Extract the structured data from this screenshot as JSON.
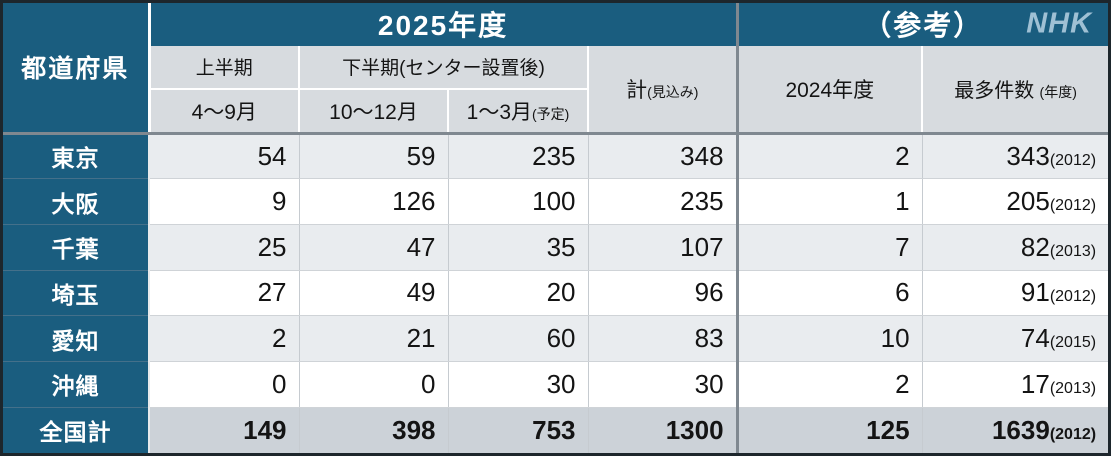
{
  "colors": {
    "accent_teal": "#1a5d7f",
    "subheader_gray": "#d7dbdf",
    "row_alt_gray": "#e9ecef",
    "total_row_gray": "#ccd2d8",
    "logo_blue": "#9fc0d4",
    "separator_gray": "#7f8890",
    "outer_border": "#1d262c"
  },
  "header": {
    "prefecture_col": "都道府県",
    "fy2025_title": "2025年度",
    "reference_title": "（参考）",
    "nhk_logo": "NHK",
    "first_half": "上半期",
    "second_half": "下半期(センター設置後)",
    "col_apr_sep": "4～9月",
    "col_oct_dec": "10～12月",
    "col_jan_mar": "1～3月",
    "col_jan_mar_note": "(予定)",
    "col_total": "計",
    "col_total_note": "(見込み)",
    "col_fy2024": "2024年度",
    "col_max": "最多件数",
    "col_max_note": "(年度)"
  },
  "chart_data": {
    "type": "table",
    "title": "2025年度 都道府県別件数（参考：2024年度・最多件数）",
    "columns": [
      "都道府県",
      "4～9月",
      "10～12月",
      "1～3月(予定)",
      "計(見込み)",
      "2024年度",
      "最多件数(年度)"
    ],
    "rows": [
      {
        "prefecture": "東京",
        "apr_sep": "54",
        "oct_dec": "59",
        "jan_mar": "235",
        "total": "348",
        "fy2024": "2",
        "max_value": "343",
        "max_year": "(2012)",
        "is_total": false
      },
      {
        "prefecture": "大阪",
        "apr_sep": "9",
        "oct_dec": "126",
        "jan_mar": "100",
        "total": "235",
        "fy2024": "1",
        "max_value": "205",
        "max_year": "(2012)",
        "is_total": false
      },
      {
        "prefecture": "千葉",
        "apr_sep": "25",
        "oct_dec": "47",
        "jan_mar": "35",
        "total": "107",
        "fy2024": "7",
        "max_value": "82",
        "max_year": "(2013)",
        "is_total": false
      },
      {
        "prefecture": "埼玉",
        "apr_sep": "27",
        "oct_dec": "49",
        "jan_mar": "20",
        "total": "96",
        "fy2024": "6",
        "max_value": "91",
        "max_year": "(2012)",
        "is_total": false
      },
      {
        "prefecture": "愛知",
        "apr_sep": "2",
        "oct_dec": "21",
        "jan_mar": "60",
        "total": "83",
        "fy2024": "10",
        "max_value": "74",
        "max_year": "(2015)",
        "is_total": false
      },
      {
        "prefecture": "沖縄",
        "apr_sep": "0",
        "oct_dec": "0",
        "jan_mar": "30",
        "total": "30",
        "fy2024": "2",
        "max_value": "17",
        "max_year": "(2013)",
        "is_total": false
      },
      {
        "prefecture": "全国計",
        "apr_sep": "149",
        "oct_dec": "398",
        "jan_mar": "753",
        "total": "1300",
        "fy2024": "125",
        "max_value": "1639",
        "max_year": "(2012)",
        "is_total": true
      }
    ]
  }
}
